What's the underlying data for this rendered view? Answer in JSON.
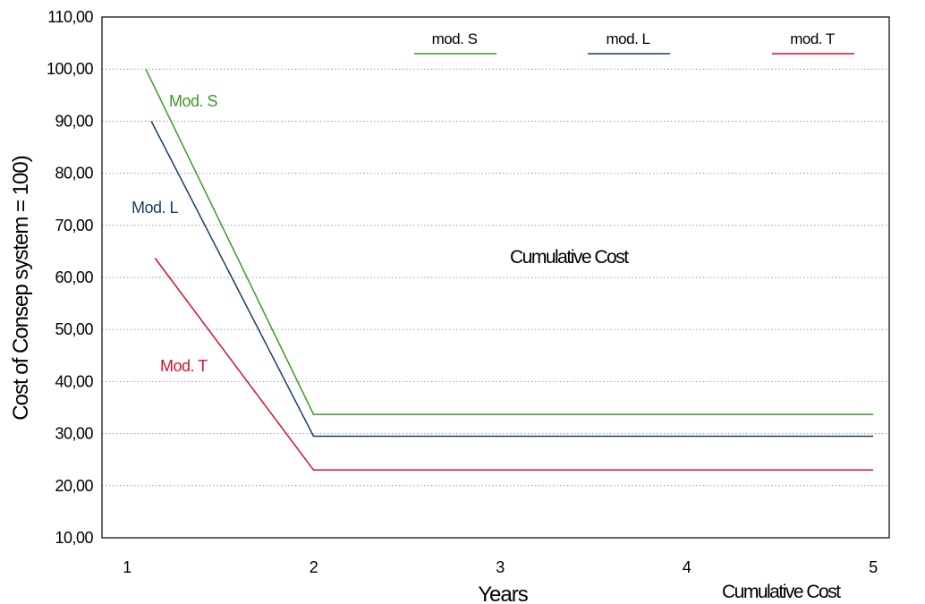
{
  "chart_data": {
    "type": "line",
    "title": "",
    "overlay_text": "Cumulative Cost",
    "xlabel": "Years",
    "ylabel": "Cost of Consep system = 100)",
    "footer_text": "Cumulative Cost",
    "xlim": [
      1,
      5
    ],
    "ylim": [
      10,
      110
    ],
    "x_ticks": [
      1,
      2,
      3,
      4,
      5
    ],
    "y_ticks": [
      "10,00",
      "20,00",
      "30,00",
      "40,00",
      "50,00",
      "60,00",
      "70,00",
      "80,00",
      "90,00",
      "100,00",
      "110,00"
    ],
    "grid": "horizontal dotted",
    "legend_position": "top",
    "series": [
      {
        "name": "mod. S",
        "annotation": "Mod. S",
        "color": "#3a9a26",
        "points": [
          [
            1.1,
            100.0
          ],
          [
            2.0,
            33.7
          ],
          [
            5.0,
            33.7
          ]
        ]
      },
      {
        "name": "mod. L",
        "annotation": "Mod. L",
        "color": "#1a3d6b",
        "points": [
          [
            1.13,
            90.0
          ],
          [
            2.0,
            29.5
          ],
          [
            5.0,
            29.5
          ]
        ]
      },
      {
        "name": "mod. T",
        "annotation": "Mod. T",
        "color": "#d4122d",
        "points": [
          [
            1.15,
            63.7
          ],
          [
            2.0,
            23.0
          ],
          [
            5.0,
            23.0
          ]
        ]
      }
    ]
  }
}
